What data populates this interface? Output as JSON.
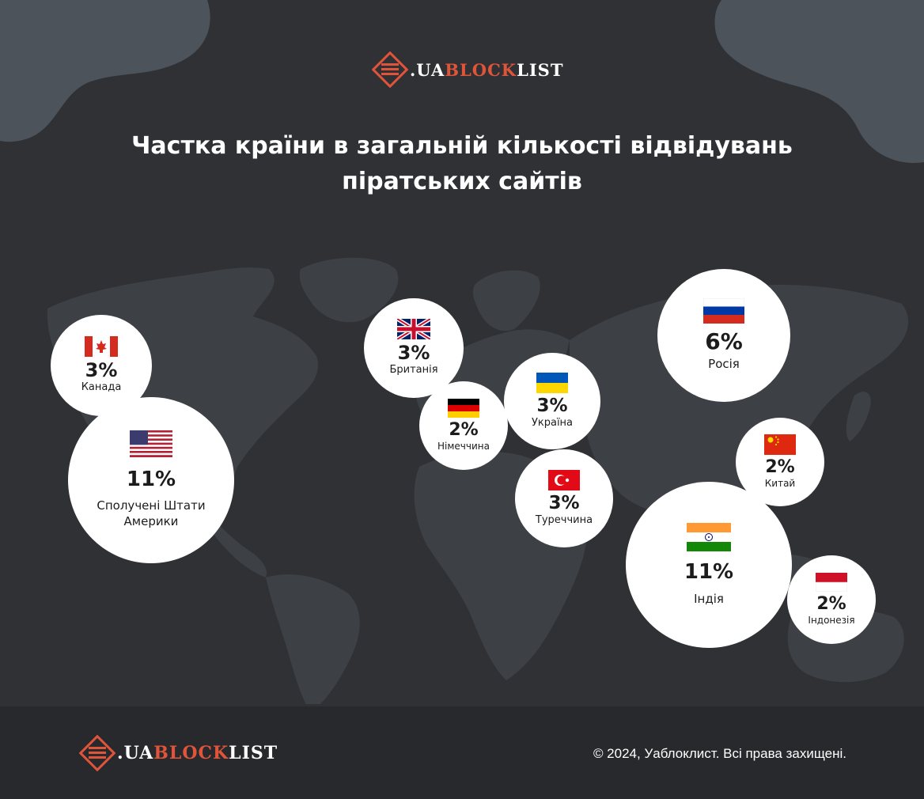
{
  "brand": {
    "part_a": ".UA",
    "part_b": "BLOCK",
    "part_c": "LIST",
    "accent": "#e0543a"
  },
  "title": {
    "line1": "Частка країни в загальній кількості відвідувань",
    "line2": "піратських сайтів"
  },
  "countries": [
    {
      "id": "canada",
      "name": "Канада",
      "percent": "3%",
      "share": 3,
      "flag": "canada-flag"
    },
    {
      "id": "usa",
      "name_line1": "Сполучені Штати",
      "name_line2": "Америки",
      "percent": "11%",
      "share": 11,
      "flag": "usa-flag"
    },
    {
      "id": "uk",
      "name": "Британія",
      "percent": "3%",
      "share": 3,
      "flag": "uk-flag"
    },
    {
      "id": "germany",
      "name": "Німеччина",
      "percent": "2%",
      "share": 2,
      "flag": "germany-flag"
    },
    {
      "id": "ukraine",
      "name": "Україна",
      "percent": "3%",
      "share": 3,
      "flag": "ukraine-flag"
    },
    {
      "id": "turkey",
      "name": "Туреччина",
      "percent": "3%",
      "share": 3,
      "flag": "turkey-flag"
    },
    {
      "id": "russia",
      "name": "Росія",
      "percent": "6%",
      "share": 6,
      "flag": "russia-flag"
    },
    {
      "id": "china",
      "name": "Китай",
      "percent": "2%",
      "share": 2,
      "flag": "china-flag"
    },
    {
      "id": "india",
      "name": "Індія",
      "percent": "11%",
      "share": 11,
      "flag": "india-flag"
    },
    {
      "id": "indonesia",
      "name": "Індонезія",
      "percent": "2%",
      "share": 2,
      "flag": "indonesia-flag"
    }
  ],
  "footer": {
    "copyright": "© 2024, Уаблоклист. Всі права захищені."
  },
  "colors": {
    "background": "#2f3135",
    "blob": "#4d535b",
    "land": "#3d4045",
    "footer": "#27292c",
    "bubble": "#ffffff"
  }
}
